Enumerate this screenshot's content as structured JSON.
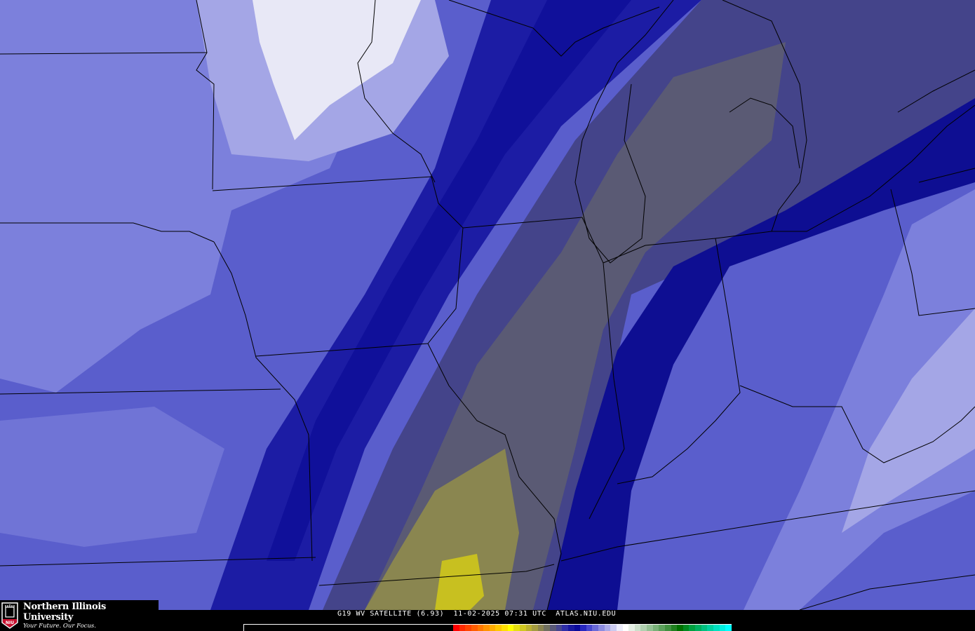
{
  "logo": {
    "name": "Northern Illinois University",
    "tagline": "Your Future. Our Focus.",
    "seal_text": "NIU"
  },
  "caption": {
    "product": "G19 WV SATELLITE (6.93)",
    "datetime": "11-02-2025 07:31 UTC",
    "site": "ATLAS.NIU.EDU"
  },
  "colorbar": {
    "colors": [
      "#ff0000",
      "#ff2a00",
      "#ff4400",
      "#ff5e00",
      "#ff7800",
      "#ff9200",
      "#ffac00",
      "#ffc600",
      "#ffe000",
      "#ffff00",
      "#e6e010",
      "#d0c820",
      "#bab030",
      "#a49c40",
      "#8a8450",
      "#707060",
      "#585878",
      "#464690",
      "#2e2ea8",
      "#1818a0",
      "#0a0a9a",
      "#2828c0",
      "#4848d0",
      "#6a6ad8",
      "#8c8ce0",
      "#ababe8",
      "#cacaf0",
      "#ececfa",
      "#ffffff",
      "#e6f0e6",
      "#cce0cc",
      "#b0d0b0",
      "#94c094",
      "#78b078",
      "#5ca05c",
      "#409040",
      "#208020",
      "#007000",
      "#008a20",
      "#00a040",
      "#00b060",
      "#00c080",
      "#00d0a0",
      "#00e0c0",
      "#00f0e0",
      "#00ffff"
    ]
  },
  "map_colors": {
    "base": "#5a5ecc",
    "light": "#7c80dc",
    "lighter": "#a4a6e6",
    "white": "#e8e8f6",
    "dark": "#1c1ca4",
    "darker": "#0e0e92",
    "gray": "#5a5a74",
    "grayblue": "#44448a",
    "olive": "#8a8650",
    "yellow": "#c8c020",
    "boundary": "#000000"
  }
}
